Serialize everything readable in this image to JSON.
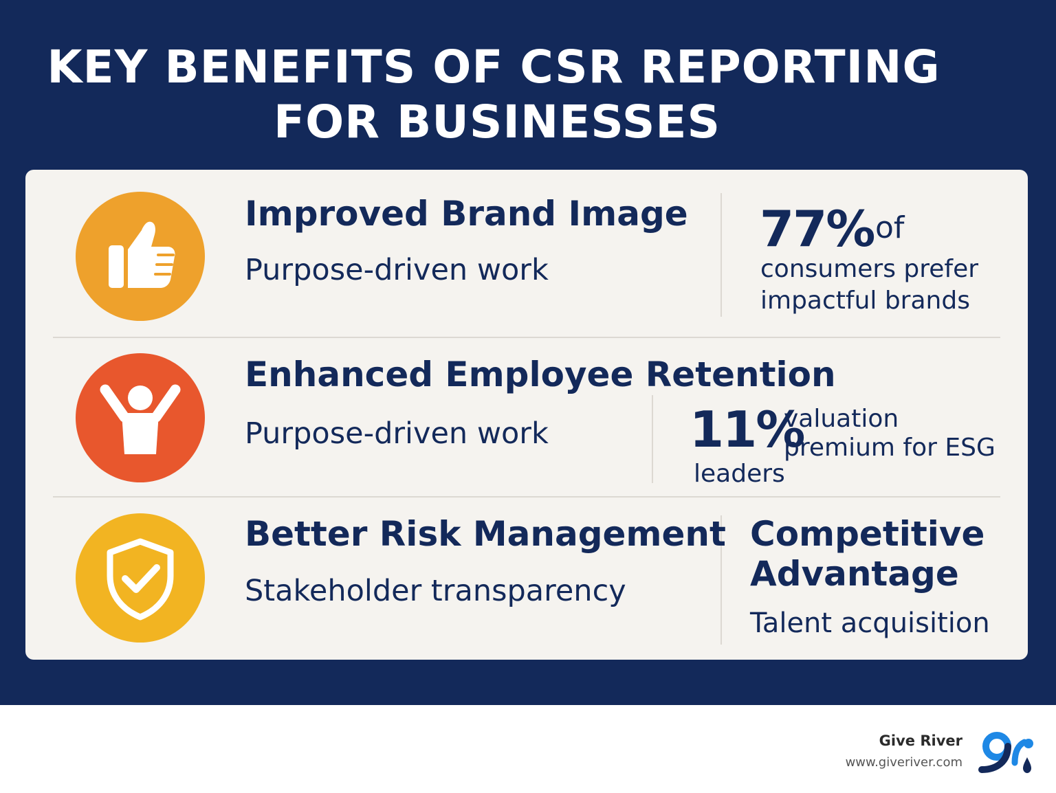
{
  "title": {
    "line1": "KEY BENEFITS OF CSR REPORTING",
    "line2": "FOR BUSINESSES"
  },
  "colors": {
    "background": "#13295a",
    "card": "#f5f3ef",
    "text": "#13295a",
    "orange": "#eea12c",
    "red_orange": "#e8572d",
    "yellow": "#f2b422"
  },
  "rows": [
    {
      "icon": "thumbs-up-icon",
      "heading": "Improved Brand Image",
      "subtext": "Purpose-driven work",
      "stat_value": "77%",
      "stat_suffix": "of",
      "stat_line2": "consumers prefer",
      "stat_line3": "impactful brands"
    },
    {
      "icon": "person-cheering-icon",
      "heading": "Enhanced Employee Retention",
      "subtext": "Purpose-driven work",
      "stat_value": "11%",
      "stat_line1": "valuation",
      "stat_line2": "premium for ESG",
      "stat_line3": "leaders"
    },
    {
      "icon": "shield-check-icon",
      "heading": "Better Risk Management",
      "subtext": "Stakeholder transparency",
      "side_heading_line1": "Competitive",
      "side_heading_line2": "Advantage",
      "side_subtext": "Talent acquisition"
    }
  ],
  "footer": {
    "brand_name": "Give River",
    "brand_url": "www.giveriver.com",
    "logo_icon": "give-river-logo-icon"
  }
}
